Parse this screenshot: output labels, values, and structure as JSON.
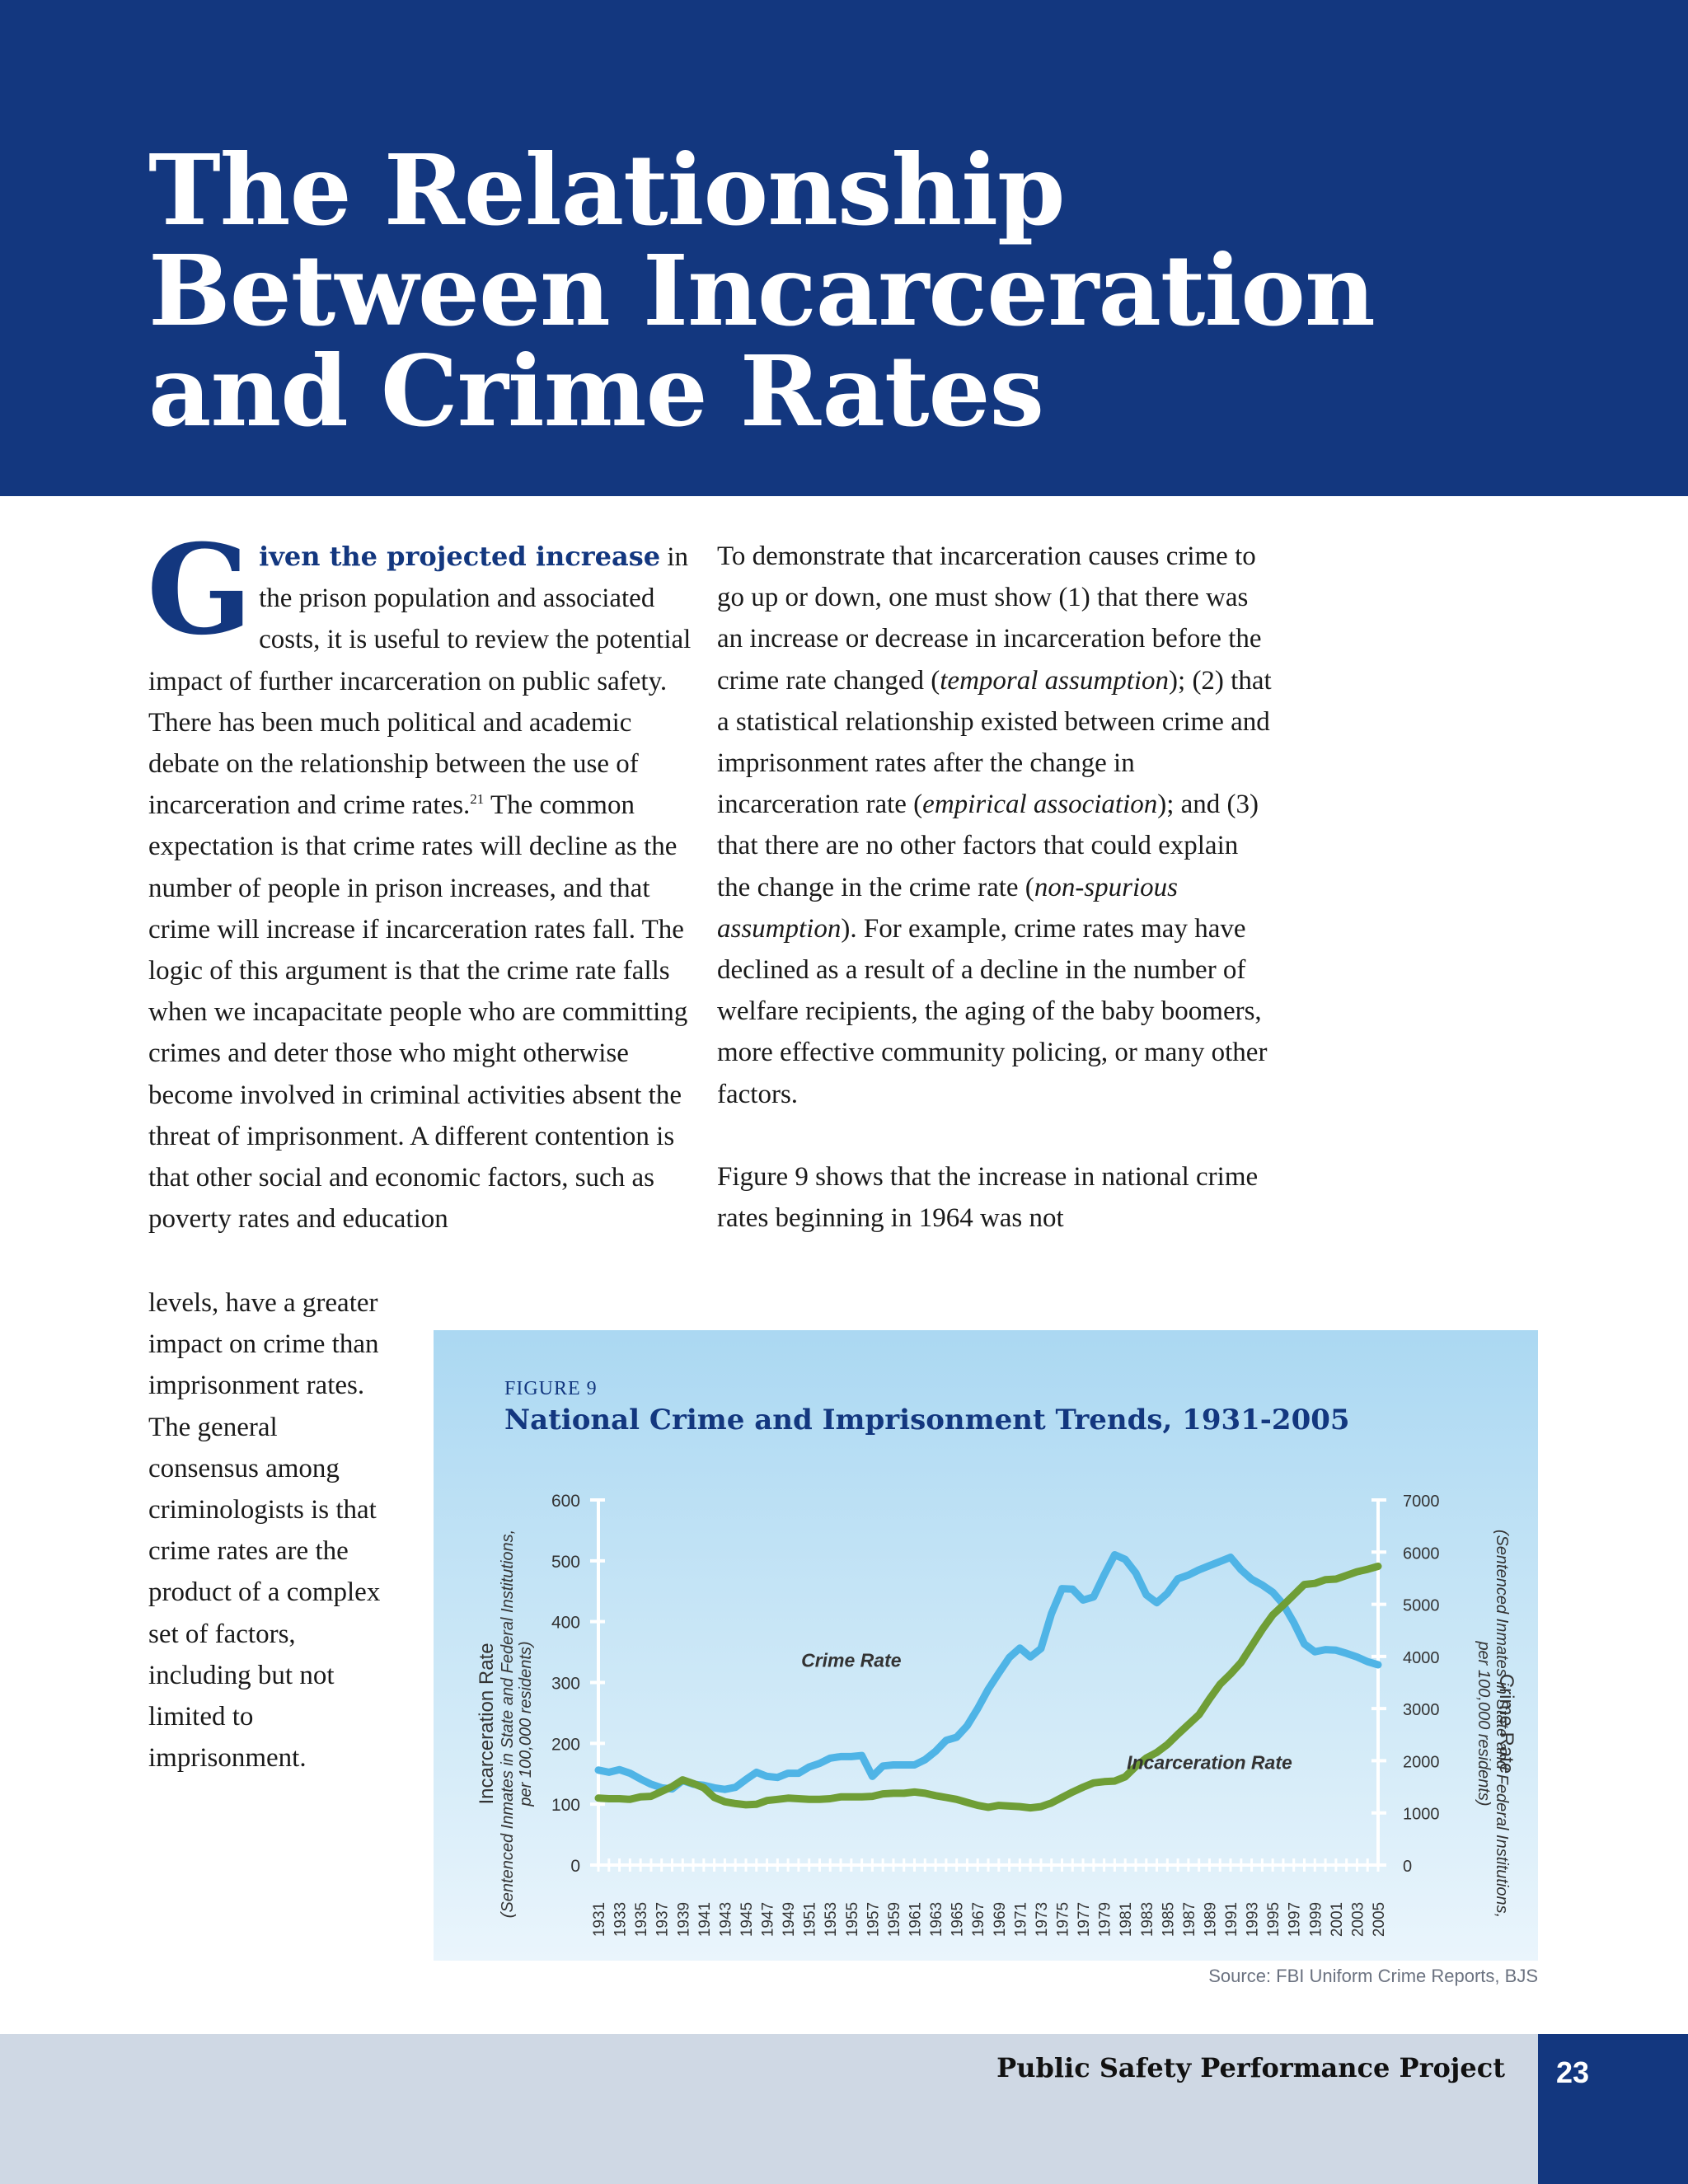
{
  "header": {
    "title_lines": [
      "The Relationship",
      "Between Incarceration",
      "and Crime Rates"
    ]
  },
  "article": {
    "dropcap": "G",
    "leadin": "iven the projected increase",
    "col1_text": "in the prison population and associated costs, it is useful to review the potential impact of further incarceration on public safety. There has been much political and academic debate on the relationship between the use of incarceration and crime rates.",
    "footnote_ref": "21",
    "col1_text_b": "The common expectation is that crime rates will decline as the number of people in prison increases, and that crime will increase if incarceration rates fall. The logic of this argument is that the crime rate falls when we incapacitate people who are committing crimes and deter those who might otherwise become involved in criminal activities absent the threat of imprisonment. A different contention is that other social and economic factors, such as poverty rates and education",
    "col1_narrow_lines": [
      "levels, have a greater",
      "impact on crime than",
      "imprisonment rates.",
      "The general",
      "consensus among",
      "criminologists is that",
      "crime rates are the",
      "product of a complex",
      "set of factors,",
      "including but not",
      "limited to",
      "imprisonment."
    ],
    "col2_intro": "To demonstrate that incarceration causes crime to go up or down, one must show (1) that there was an increase or decrease in incarceration before the crime rate changed (",
    "col2_em1": "temporal assumption",
    "col2_mid1": "); (2) that a statistical relationship existed between crime and imprisonment rates after the change in incarceration rate (",
    "col2_em2": "empirical association",
    "col2_mid2": "); and (3) that there are no other factors that could explain the change in the crime rate (",
    "col2_em3": "non-spurious assumption",
    "col2_end": "). For example, crime rates may have declined as a result of a decline in the number of welfare recipients, the aging of the baby boomers, more effective community policing, or many other factors.",
    "col2_para2": "Figure 9 shows that the increase in national crime rates beginning in 1964 was not"
  },
  "figure": {
    "label": "FIGURE 9",
    "title": "National Crime and Imprisonment Trends, 1931-2005",
    "source": "Source: FBI Uniform Crime Reports, BJS",
    "colors": {
      "crime": "#4fb4e6",
      "incarceration": "#6f9e36",
      "axis": "#ffffff",
      "label": "#333333"
    }
  },
  "chart_data": {
    "type": "line",
    "title": "National Crime and Imprisonment Trends, 1931-2005",
    "x": [
      1931,
      1932,
      1933,
      1934,
      1935,
      1936,
      1937,
      1938,
      1939,
      1940,
      1941,
      1942,
      1943,
      1944,
      1945,
      1946,
      1947,
      1948,
      1949,
      1950,
      1951,
      1952,
      1953,
      1954,
      1955,
      1956,
      1957,
      1958,
      1959,
      1960,
      1961,
      1962,
      1963,
      1964,
      1965,
      1966,
      1967,
      1968,
      1969,
      1970,
      1971,
      1972,
      1973,
      1974,
      1975,
      1976,
      1977,
      1978,
      1979,
      1980,
      1981,
      1982,
      1983,
      1984,
      1985,
      1986,
      1987,
      1988,
      1989,
      1990,
      1991,
      1992,
      1993,
      1994,
      1995,
      1996,
      1997,
      1998,
      1999,
      2000,
      2001,
      2002,
      2003,
      2004,
      2005
    ],
    "x_tick_labels": [
      "1931",
      "1933",
      "1935",
      "1937",
      "1939",
      "1941",
      "1943",
      "1945",
      "1947",
      "1949",
      "1951",
      "1953",
      "1955",
      "1957",
      "1959",
      "1961",
      "1963",
      "1965",
      "1967",
      "1969",
      "1971",
      "1973",
      "1975",
      "1977",
      "1979",
      "1981",
      "1983",
      "1985",
      "1987",
      "1989",
      "1991",
      "1993",
      "1995",
      "1997",
      "1999",
      "2001",
      "2003",
      "2005"
    ],
    "y_left": {
      "label": "Incarceration Rate",
      "sublabel": "(Sentenced Inmates in State and Federal Institutions, per 100,000 residents)",
      "range": [
        0,
        600
      ],
      "ticks": [
        "0",
        "100",
        "200",
        "300",
        "400",
        "500",
        "600"
      ]
    },
    "y_right": {
      "label": "Crime Rate",
      "sublabel": "(Sentenced Inmates in State and Federal Institutions, per 100,000 residents)",
      "range": [
        0,
        7000
      ],
      "ticks": [
        "0",
        "1000",
        "2000",
        "3000",
        "4000",
        "5000",
        "6000",
        "7000"
      ]
    },
    "series": [
      {
        "name": "Crime Rate",
        "axis": "right",
        "values": [
          1820,
          1780,
          1830,
          1760,
          1650,
          1550,
          1480,
          1460,
          1620,
          1550,
          1530,
          1480,
          1450,
          1490,
          1640,
          1780,
          1700,
          1680,
          1760,
          1760,
          1880,
          1950,
          2050,
          2080,
          2080,
          2100,
          1700,
          1900,
          1920,
          1920,
          1920,
          2020,
          2180,
          2390,
          2450,
          2670,
          3000,
          3370,
          3680,
          3980,
          4160,
          3990,
          4150,
          4820,
          5300,
          5290,
          5080,
          5140,
          5560,
          5950,
          5860,
          5600,
          5180,
          5030,
          5210,
          5490,
          5560,
          5660,
          5740,
          5820,
          5900,
          5660,
          5480,
          5370,
          5230,
          5000,
          4650,
          4240,
          4090,
          4130,
          4120,
          4060,
          3990,
          3900,
          3840
        ]
      },
      {
        "name": "Incarceration Rate",
        "axis": "left",
        "values": [
          110,
          109,
          109,
          108,
          112,
          113,
          121,
          129,
          140,
          134,
          127,
          111,
          104,
          101,
          99,
          100,
          106,
          108,
          110,
          109,
          108,
          108,
          109,
          112,
          112,
          112,
          113,
          117,
          118,
          118,
          120,
          118,
          114,
          111,
          108,
          103,
          98,
          95,
          98,
          97,
          96,
          94,
          96,
          102,
          111,
          120,
          128,
          135,
          137,
          138,
          145,
          162,
          176,
          185,
          198,
          215,
          231,
          247,
          273,
          297,
          314,
          333,
          360,
          387,
          411,
          427,
          444,
          461,
          463,
          469,
          470,
          476,
          482,
          486,
          491
        ]
      }
    ],
    "annotations": [
      {
        "text": "Crime Rate",
        "x": 1955,
        "y_right": 3800
      },
      {
        "text": "Incarceration Rate",
        "x": 1989,
        "y_left": 158
      }
    ],
    "grid": false,
    "legend": "none"
  },
  "footer": {
    "publication": "Public Safety Performance Project",
    "page_number": "23"
  }
}
